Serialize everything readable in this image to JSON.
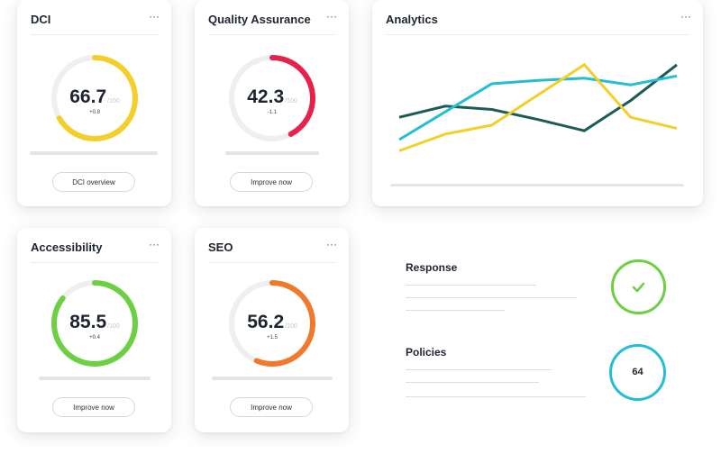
{
  "cards": {
    "dci": {
      "title": "DCI",
      "menu": "···",
      "value": "66.7",
      "max": "/100",
      "delta": "+0.8",
      "progress": 0.667,
      "color": "#f4cf2a",
      "button": "DCI overview"
    },
    "qa": {
      "title": "Quality Assurance",
      "menu": "···",
      "value": "42.3",
      "max": "/100",
      "delta": "-1.1",
      "progress": 0.423,
      "color": "#e8204c",
      "button": "Improve now"
    },
    "accessibility": {
      "title": "Accessibility",
      "menu": "···",
      "value": "85.5",
      "max": "/100",
      "delta": "+0.4",
      "progress": 0.855,
      "color": "#6ccf44",
      "button": "Improve now"
    },
    "seo": {
      "title": "SEO",
      "menu": "···",
      "value": "56.2",
      "max": "/100",
      "delta": "+1.5",
      "progress": 0.562,
      "color": "#ef7a2b",
      "button": "Improve now"
    }
  },
  "analytics": {
    "title": "Analytics",
    "menu": "···",
    "chart_data": {
      "type": "line",
      "x": [
        0,
        1,
        2,
        3,
        4,
        5,
        6
      ],
      "ylim": [
        0,
        100
      ],
      "series": [
        {
          "color": "#1d5c55",
          "values": [
            45,
            55,
            52,
            43,
            33,
            60,
            92
          ]
        },
        {
          "color": "#25bdd4",
          "values": [
            25,
            50,
            75,
            78,
            80,
            74,
            82
          ]
        },
        {
          "color": "#f4cf2a",
          "values": [
            15,
            30,
            38,
            65,
            92,
            45,
            35
          ]
        }
      ]
    }
  },
  "response": {
    "title": "Response",
    "status": "check-icon",
    "color": "#6ccf44"
  },
  "policies": {
    "title": "Policies",
    "value": "64",
    "color": "#25bdd4"
  }
}
